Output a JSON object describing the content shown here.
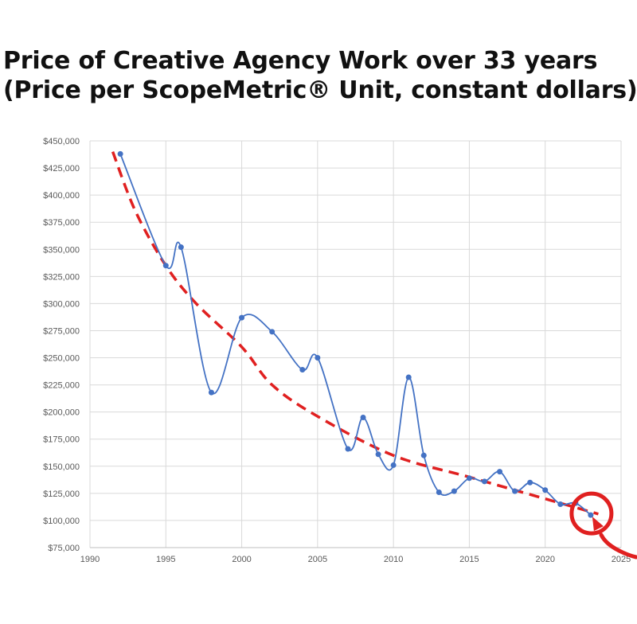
{
  "title": {
    "line1": "Price of Creative Agency Work over 33 years",
    "line2": "(Price per ScopeMetric® Unit, constant dollars)"
  },
  "chart_data": {
    "type": "line",
    "xlim": [
      1990,
      2025
    ],
    "ylim": [
      75000,
      450000
    ],
    "x_ticks": [
      1990,
      1995,
      2000,
      2005,
      2010,
      2015,
      2020,
      2025
    ],
    "y_ticks": [
      75000,
      100000,
      125000,
      150000,
      175000,
      200000,
      225000,
      250000,
      275000,
      300000,
      325000,
      350000,
      375000,
      400000,
      425000,
      450000
    ],
    "x_tick_labels": [
      "1990",
      "1995",
      "2000",
      "2005",
      "2010",
      "2015",
      "2020",
      "2025"
    ],
    "y_tick_labels": [
      "$75,000",
      "$100,000",
      "$125,000",
      "$150,000",
      "$175,000",
      "$200,000",
      "$225,000",
      "$250,000",
      "$275,000",
      "$300,000",
      "$325,000",
      "$350,000",
      "$375,000",
      "$400,000",
      "$425,000",
      "$450,000"
    ],
    "grid": true,
    "series": [
      {
        "color": "#4472c4",
        "style": "smooth-line-with-markers",
        "x": [
          1992,
          1995,
          1996,
          1998,
          2000,
          2002,
          2004,
          2005,
          2007,
          2008,
          2009,
          2010,
          2011,
          2012,
          2013,
          2014,
          2015,
          2016,
          2017,
          2018,
          2019,
          2020,
          2021,
          2022,
          2023
        ],
        "y": [
          438000,
          335000,
          352000,
          218000,
          287000,
          274000,
          239000,
          250000,
          166000,
          195000,
          161000,
          151000,
          232000,
          160000,
          126000,
          127000,
          139000,
          136000,
          145000,
          127000,
          135000,
          128000,
          115000,
          116000,
          105000
        ]
      },
      {
        "color": "#e02020",
        "style": "dashed-trend",
        "x": [
          1991.5,
          1993,
          1995,
          1997,
          2000,
          2002,
          2005,
          2010,
          2015,
          2020,
          2023.5
        ],
        "y": [
          440000,
          385000,
          335000,
          300000,
          260000,
          225000,
          196000,
          160000,
          140000,
          120000,
          106000
        ]
      }
    ],
    "annotation": {
      "type": "circle-and-arrow",
      "color": "#e02020",
      "x": 2023,
      "y": 105000
    }
  }
}
